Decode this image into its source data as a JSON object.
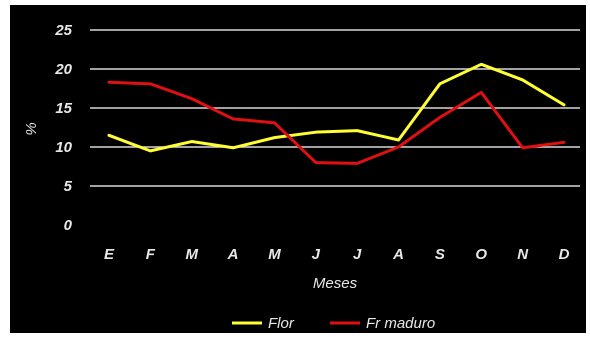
{
  "chart_data": {
    "type": "line",
    "categories": [
      "E",
      "F",
      "M",
      "A",
      "M",
      "J",
      "J",
      "A",
      "S",
      "O",
      "N",
      "D"
    ],
    "series": [
      {
        "name": "Flor",
        "color": "#ffff33",
        "values": [
          11.5,
          9.5,
          10.7,
          9.9,
          11.2,
          11.9,
          12.1,
          10.9,
          18.1,
          20.6,
          18.6,
          15.4
        ]
      },
      {
        "name": "Fr maduro",
        "color": "#e01010",
        "values": [
          18.3,
          18.1,
          16.2,
          13.6,
          13.1,
          8.0,
          7.9,
          10.0,
          13.8,
          17.0,
          9.9,
          10.6
        ]
      }
    ],
    "yticks": [
      "25",
      "20",
      "15",
      "10",
      "5",
      "0"
    ],
    "ytick_values": [
      25,
      20,
      15,
      10,
      5,
      0
    ],
    "xlabel": "Meses",
    "ylabel": "%",
    "ylim": [
      0,
      25
    ],
    "grid": true,
    "legend_position": "bottom",
    "background": "#000000"
  }
}
